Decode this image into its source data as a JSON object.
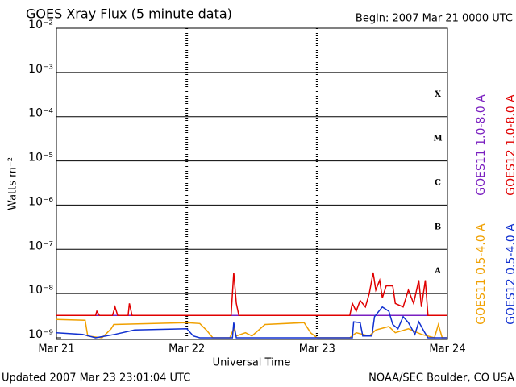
{
  "chart_data": {
    "type": "line",
    "title": "GOES Xray Flux (5 minute data)",
    "subtitle": "Begin:  2007 Mar 21 0000 UTC",
    "ylabel": "Watts m⁻²",
    "xlabel": "Universal Time",
    "footer_left": "Updated 2007 Mar 23 23:01:04 UTC",
    "footer_right": "NOAA/SEC Boulder, CO USA",
    "flare_classes": [
      "X",
      "M",
      "C",
      "B",
      "A"
    ],
    "ylog": true,
    "grid": true,
    "ylim": [
      1e-09,
      0.01
    ],
    "yticks": [
      {
        "value": 0.01,
        "label": "10⁻²"
      },
      {
        "value": 0.001,
        "label": "10⁻³"
      },
      {
        "value": 0.0001,
        "label": "10⁻⁴"
      },
      {
        "value": 1e-05,
        "label": "10⁻⁵"
      },
      {
        "value": 1e-06,
        "label": "10⁻⁶"
      },
      {
        "value": 1e-07,
        "label": "10⁻⁷"
      },
      {
        "value": 1e-08,
        "label": "10⁻⁸"
      },
      {
        "value": 1e-09,
        "label": "10⁻⁹"
      }
    ],
    "xlim": [
      21,
      24
    ],
    "xticks": [
      {
        "value": 21,
        "label": "Mar 21"
      },
      {
        "value": 22,
        "label": "Mar 22"
      },
      {
        "value": 23,
        "label": "Mar 23"
      },
      {
        "value": 24,
        "label": "Mar 24"
      }
    ],
    "series": [
      {
        "name": "GOES11 1.0-8.0 A",
        "color": "#7a1fc0",
        "x": [
          21.0,
          22.0,
          23.0,
          24.0
        ],
        "values": [
          3.2e-09,
          3.2e-09,
          3.2e-09,
          3.2e-09
        ]
      },
      {
        "name": "GOES12 1.0-8.0 A",
        "color": "#e00000",
        "x": [
          21.0,
          21.3,
          21.31,
          21.33,
          21.43,
          21.45,
          21.47,
          21.55,
          21.56,
          21.58,
          22.34,
          22.36,
          22.38,
          22.4,
          23.25,
          23.27,
          23.3,
          23.33,
          23.37,
          23.4,
          23.43,
          23.45,
          23.48,
          23.5,
          23.53,
          23.58,
          23.6,
          23.66,
          23.7,
          23.74,
          23.78,
          23.8,
          23.83,
          23.85,
          24.0
        ],
        "values": [
          3.2e-09,
          3.2e-09,
          4e-09,
          3.2e-09,
          3.2e-09,
          5e-09,
          3.2e-09,
          3.2e-09,
          6e-09,
          3.2e-09,
          3.2e-09,
          3e-08,
          6e-09,
          3.2e-09,
          3.2e-09,
          6e-09,
          4e-09,
          7e-09,
          5e-09,
          1e-08,
          3e-08,
          1.2e-08,
          2e-08,
          8e-09,
          1.5e-08,
          1.5e-08,
          6e-09,
          5e-09,
          1.2e-08,
          6e-09,
          2e-08,
          5e-09,
          2e-08,
          3.2e-09,
          3.2e-09
        ]
      },
      {
        "name": "GOES11 0.5-4.0 A",
        "color": "#f0a000",
        "x": [
          21.0,
          21.22,
          21.24,
          21.35,
          21.42,
          21.44,
          22.0,
          22.1,
          22.15,
          22.2,
          22.33,
          22.36,
          22.38,
          22.45,
          22.5,
          22.6,
          22.9,
          22.95,
          23.0,
          23.25,
          23.3,
          23.4,
          23.45,
          23.55,
          23.6,
          23.7,
          23.8,
          23.9,
          23.93,
          23.96,
          24.0
        ],
        "values": [
          2.6e-09,
          2.5e-09,
          1.1e-09,
          1e-09,
          1.6e-09,
          2e-09,
          2.2e-09,
          2.1e-09,
          1.5e-09,
          1e-09,
          1e-09,
          1.6e-09,
          1.1e-09,
          1.3e-09,
          1.1e-09,
          2e-09,
          2.2e-09,
          1.3e-09,
          1e-09,
          1e-09,
          1.3e-09,
          1.1e-09,
          1.5e-09,
          1.8e-09,
          1.3e-09,
          1.6e-09,
          1.2e-09,
          1e-09,
          2e-09,
          1e-09,
          1e-09
        ]
      },
      {
        "name": "GOES12 0.5-4.0 A",
        "color": "#1030d0",
        "x": [
          21.0,
          21.2,
          21.3,
          21.45,
          21.6,
          22.0,
          22.05,
          22.1,
          22.35,
          22.36,
          22.38,
          23.0,
          23.27,
          23.28,
          23.33,
          23.35,
          23.42,
          23.44,
          23.5,
          23.55,
          23.58,
          23.62,
          23.66,
          23.7,
          23.75,
          23.78,
          23.82,
          23.85,
          24.0
        ],
        "values": [
          1.3e-09,
          1.2e-09,
          1e-09,
          1.2e-09,
          1.5e-09,
          1.6e-09,
          1.1e-09,
          1e-09,
          1e-09,
          2.2e-09,
          1e-09,
          1e-09,
          1e-09,
          2.3e-09,
          2.2e-09,
          1.1e-09,
          1.1e-09,
          3e-09,
          5e-09,
          4e-09,
          2e-09,
          1.6e-09,
          3e-09,
          2.2e-09,
          1.2e-09,
          2.3e-09,
          1.4e-09,
          1e-09,
          1e-09
        ]
      }
    ]
  }
}
